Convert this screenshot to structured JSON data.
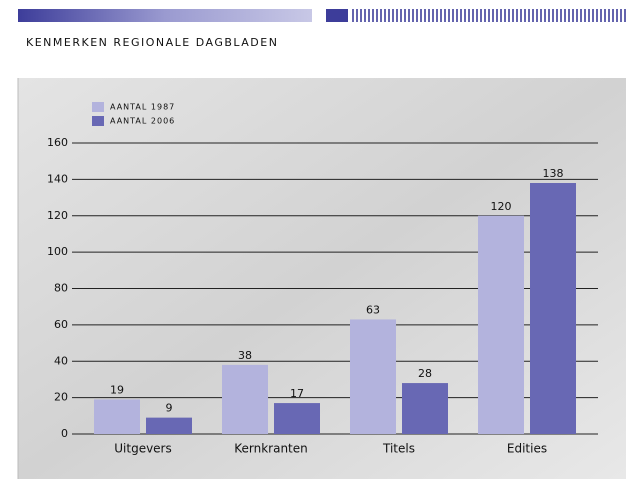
{
  "chart_data": {
    "type": "bar",
    "title": "KENMERKEN REGIONALE DAGBLADEN",
    "categories": [
      "Uitgevers",
      "Kernkranten",
      "Titels",
      "Edities"
    ],
    "series": [
      {
        "name": "AANTAL 1987",
        "color": "#b3b3dd",
        "values": [
          19,
          38,
          63,
          120
        ]
      },
      {
        "name": "AANTAL 2006",
        "color": "#6868b4",
        "values": [
          9,
          17,
          28,
          138
        ]
      }
    ],
    "ylim": [
      0,
      160
    ],
    "yticks": [
      0,
      20,
      40,
      60,
      80,
      100,
      120,
      140,
      160
    ],
    "grid": true,
    "legend": "top-left"
  }
}
